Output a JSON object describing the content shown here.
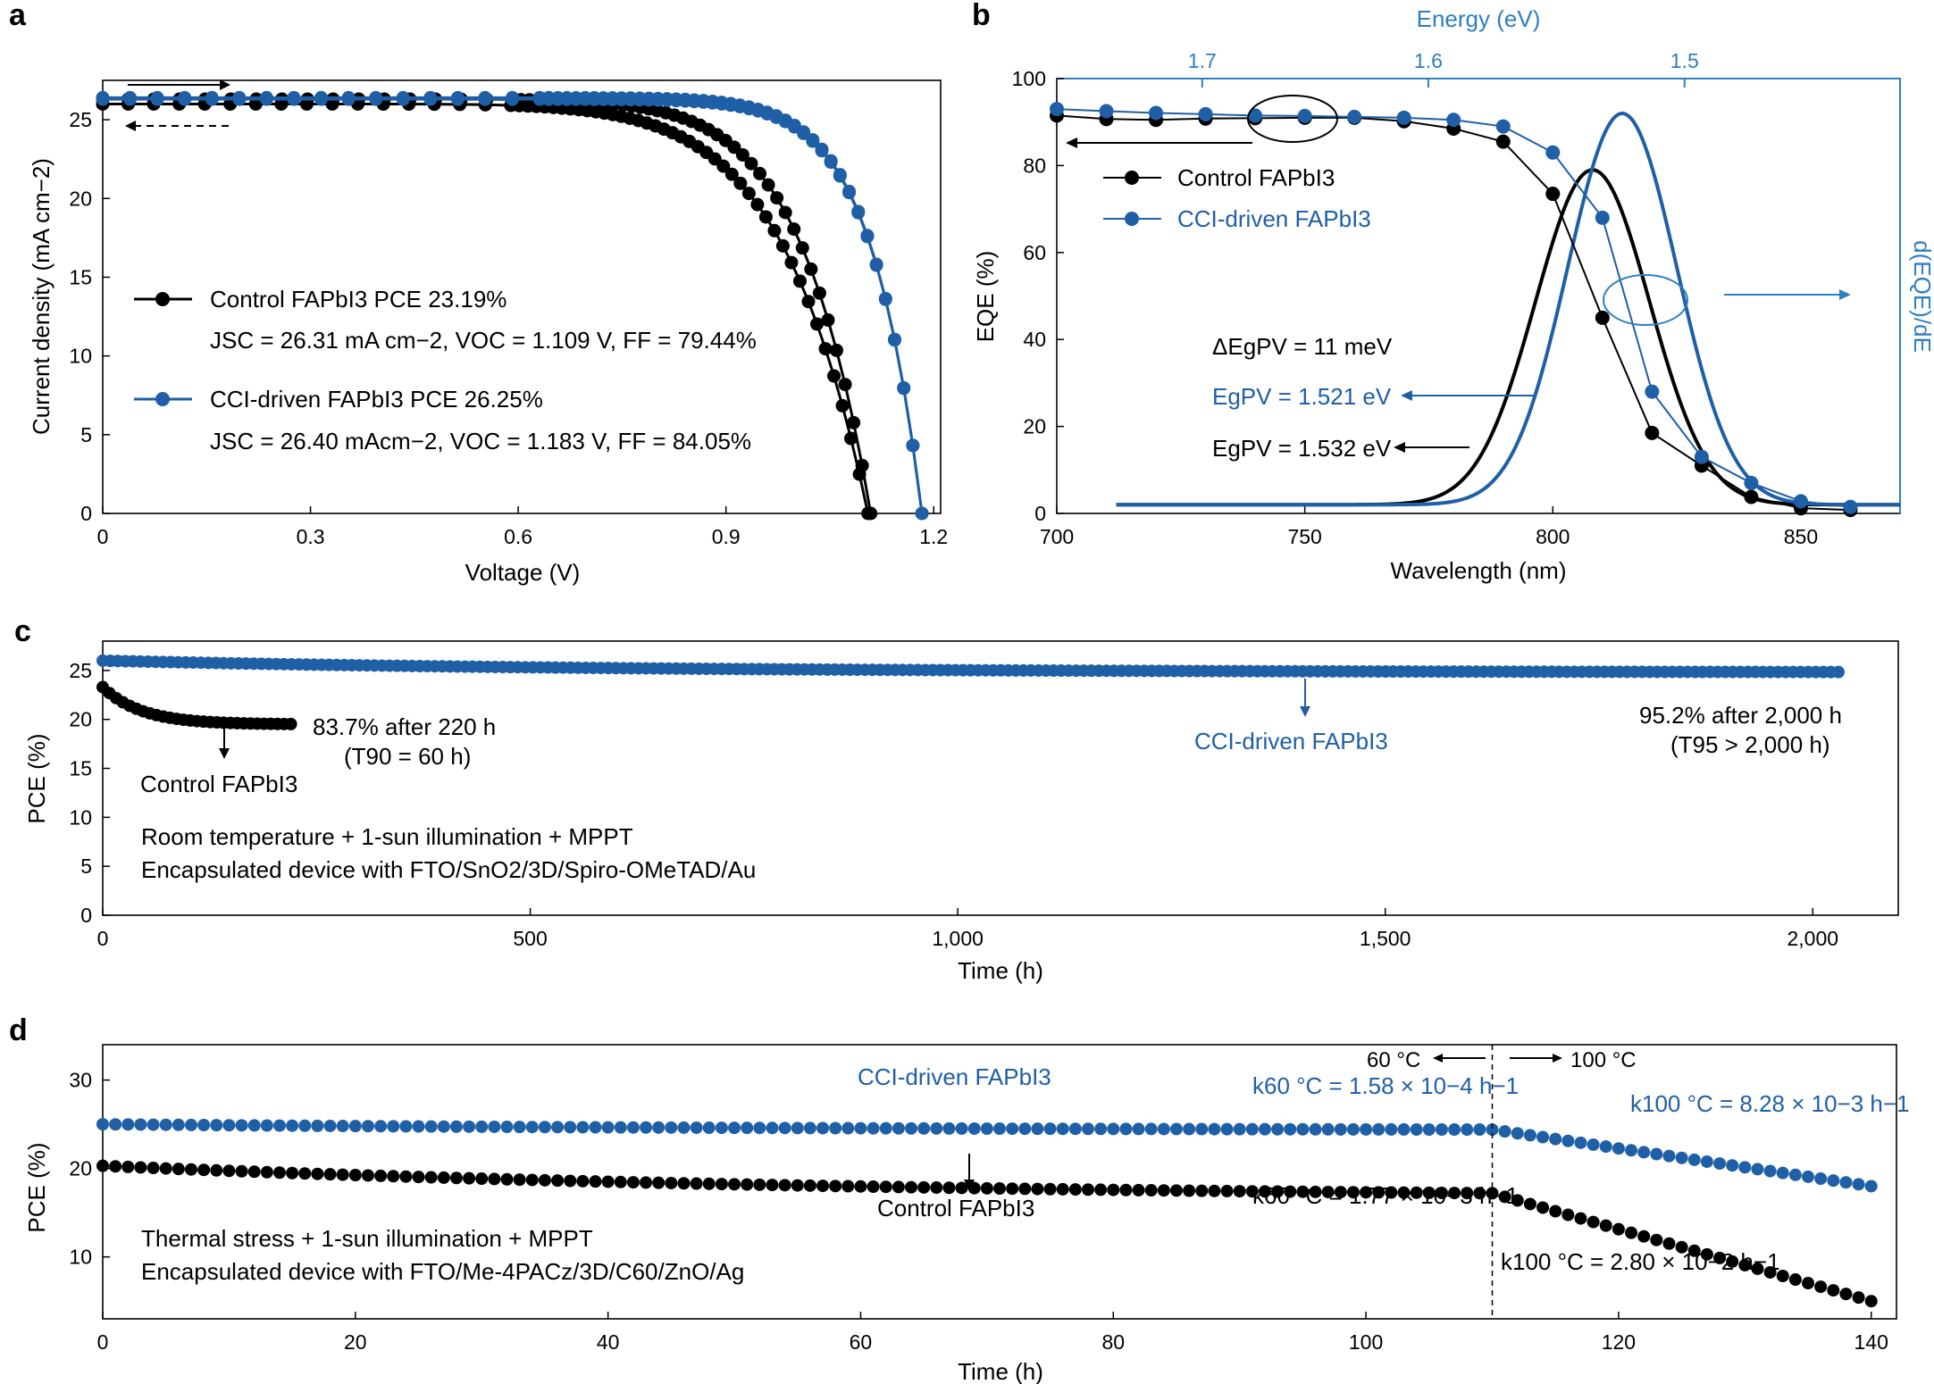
{
  "colors": {
    "control": "#000000",
    "cci": "#1f5fa6",
    "axis_b_right": "#2e7fbf"
  },
  "panel_labels": [
    "a",
    "b",
    "c",
    "d"
  ],
  "chart_data": [
    {
      "panel": "a",
      "type": "line",
      "xlabel": "Voltage (V)",
      "ylabel": "Current density (mA cm−2)",
      "xlim": [
        0,
        1.21
      ],
      "ylim": [
        0,
        27.5
      ],
      "xticks": [
        0,
        0.3,
        0.6,
        0.9,
        1.2
      ],
      "xtick_labels": [
        "0",
        "0.3",
        "0.6",
        "0.9",
        "1.2"
      ],
      "yticks": [
        0,
        5,
        10,
        15,
        20,
        25
      ],
      "ytick_labels": [
        "0",
        "5",
        "10",
        "15",
        "20",
        "25"
      ],
      "legend": {
        "control_label": "Control FAPbI3 PCE 23.19%",
        "control_params": "JSC = 26.31 mA cm−2, VOC = 1.109 V, FF = 79.44%",
        "cci_label": "CCI-driven FAPbI3 PCE 26.25%",
        "cci_params": "JSC = 26.40 mAcm−2, VOC = 1.183 V, FF = 84.05%"
      },
      "series": [
        {
          "name": "Control FAPbI3",
          "color": "#000000",
          "fwd": {
            "jsc": 26.31,
            "voc": 1.109,
            "p": 11
          },
          "rev": {
            "jsc": 26.0,
            "voc": 1.105,
            "p": 9
          }
        },
        {
          "name": "CCI-driven FAPbI3",
          "color": "#1f5fa6",
          "fwd": {
            "jsc": 26.4,
            "voc": 1.183,
            "p": 16
          },
          "rev": {
            "jsc": 26.3,
            "voc": 1.183,
            "p": 16
          }
        }
      ]
    },
    {
      "panel": "b",
      "type": "line",
      "xlabel": "Wavelength (nm)",
      "ylabel": "EQE (%)",
      "top_axis_label": "Energy (eV)",
      "right_axis_label": "d(EQE)/dE",
      "xlim": [
        700,
        870
      ],
      "ylim": [
        0,
        100
      ],
      "xticks": [
        700,
        750,
        800,
        850
      ],
      "xtick_labels": [
        "700",
        "750",
        "800",
        "850"
      ],
      "yticks": [
        0,
        20,
        40,
        60,
        80,
        100
      ],
      "ytick_labels": [
        "0",
        "20",
        "40",
        "60",
        "80",
        "100"
      ],
      "top_ticks_ev": [
        1.7,
        1.6,
        1.5
      ],
      "top_tick_labels": [
        "1.7",
        "1.6",
        "1.5"
      ],
      "legend": {
        "control": "Control FAPbI3",
        "cci": "CCI-driven FAPbI3"
      },
      "annotations": {
        "delta": "ΔEgPV = 11 meV",
        "cci_eg": "EgPV = 1.521 eV",
        "control_eg": "EgPV = 1.532 eV"
      },
      "series": [
        {
          "name": "Control FAPbI3",
          "color": "#000000",
          "x": [
            700,
            710,
            720,
            730,
            740,
            750,
            760,
            770,
            780,
            790,
            800,
            810,
            820,
            830,
            840,
            850,
            860
          ],
          "y": [
            91.5,
            90.7,
            90.5,
            90.8,
            90.9,
            91.0,
            91.0,
            90.2,
            88.5,
            85.5,
            73.5,
            45.0,
            18.5,
            11.0,
            3.8,
            1.2,
            0.8
          ]
        },
        {
          "name": "CCI-driven FAPbI3",
          "color": "#1f5fa6",
          "x": [
            700,
            710,
            720,
            730,
            740,
            750,
            760,
            770,
            780,
            790,
            800,
            810,
            820,
            830,
            840,
            850,
            860
          ],
          "y": [
            93.0,
            92.5,
            92.1,
            91.8,
            91.5,
            91.4,
            91.2,
            91.0,
            90.5,
            89.0,
            83.0,
            68.0,
            28.0,
            13.0,
            7.0,
            2.8,
            1.5
          ]
        },
        {
          "name": "d(EQE)/dE Control",
          "color": "#000000",
          "center": 808,
          "sigma": 11.5,
          "peak": 77,
          "base": 2,
          "start": 712
        },
        {
          "name": "d(EQE)/dE CCI",
          "color": "#1f5fa6",
          "center": 814,
          "sigma": 11.0,
          "peak": 90,
          "base": 2,
          "start": 712
        }
      ]
    },
    {
      "panel": "c",
      "type": "scatter",
      "xlabel": "Time (h)",
      "ylabel": "PCE (%)",
      "xlim": [
        0,
        2100
      ],
      "ylim": [
        0,
        28
      ],
      "xticks": [
        0,
        500,
        1000,
        1500,
        2000
      ],
      "xtick_labels": [
        "0",
        "500",
        "1,000",
        "1,500",
        "2,000"
      ],
      "yticks": [
        0,
        5,
        10,
        15,
        20,
        25
      ],
      "ytick_labels": [
        "0",
        "5",
        "10",
        "15",
        "20",
        "25"
      ],
      "annotations": {
        "control_retention": "83.7% after 220 h",
        "control_t90": "(T90 = 60 h)",
        "control_label": "Control FAPbI3",
        "cci_label": "CCI-driven FAPbI3",
        "cci_retention": "95.2% after 2,000 h",
        "cci_t95": "(T95 > 2,000 h)",
        "condition": "Room temperature + 1-sun illumination + MPPT",
        "device": "Encapsulated device with FTO/SnO2/3D/Spiro-OMeTAD/Au"
      },
      "series": [
        {
          "name": "Control FAPbI3",
          "color": "#000000",
          "x_end": 220,
          "start": 23.3,
          "end": 19.5,
          "decay": 45
        },
        {
          "name": "CCI-driven FAPbI3",
          "color": "#1f5fa6",
          "x_end": 2030,
          "start": 26.0,
          "end": 24.8,
          "decay": 600
        }
      ]
    },
    {
      "panel": "d",
      "type": "scatter",
      "xlabel": "Time (h)",
      "ylabel": "PCE (%)",
      "xlim": [
        0,
        142
      ],
      "ylim": [
        3,
        34
      ],
      "xticks": [
        0,
        20,
        40,
        60,
        80,
        100,
        120,
        140
      ],
      "xtick_labels": [
        "0",
        "20",
        "40",
        "60",
        "80",
        "100",
        "120",
        "140"
      ],
      "yticks": [
        10,
        20,
        30
      ],
      "ytick_labels": [
        "10",
        "20",
        "30"
      ],
      "temperature_switch_h": 110,
      "annotations": {
        "left_temp": "60 °C",
        "right_temp": "100 °C",
        "cci_label": "CCI-driven FAPbI3",
        "cci_k60": "k60 °C = 1.58 × 10−4 h−1",
        "cci_k100": "k100 °C = 8.28 × 10−3 h−1",
        "control_label": "Control FAPbI3",
        "control_k60": "k60 °C = 1.77 × 10−3 h−1",
        "control_k100": "k100 °C = 2.80 × 10−2 h−1",
        "condition": "Thermal stress + 1-sun illumination + MPPT",
        "device": "Encapsulated device with FTO/Me-4PACz/3D/C60/ZnO/Ag"
      },
      "series": [
        {
          "name": "CCI-driven FAPbI3",
          "color": "#1f5fa6",
          "t0": 25.0,
          "t110": 24.4,
          "t140": 18.0
        },
        {
          "name": "Control FAPbI3",
          "color": "#000000",
          "t0": 20.3,
          "t110": 17.2,
          "t140": 5.0
        }
      ]
    }
  ]
}
